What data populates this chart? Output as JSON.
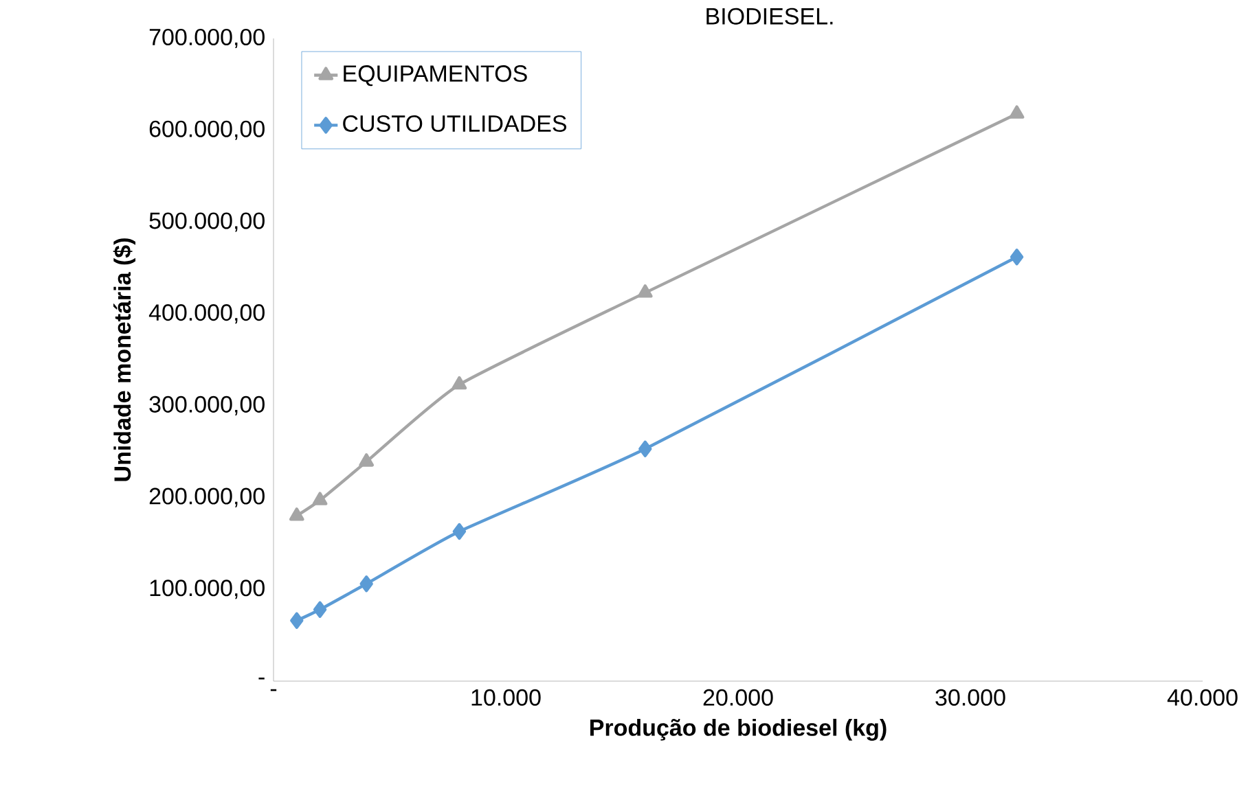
{
  "chart_data": {
    "type": "line",
    "title": "BIODIESEL.",
    "xlabel": "Produção de biodiesel (kg)",
    "ylabel": "Unidade monetária ($)",
    "x": [
      1000,
      2000,
      4000,
      8000,
      16000,
      32000
    ],
    "series": [
      {
        "name": "EQUIPAMENTOS",
        "color": "#a5a5a5",
        "marker": "triangle",
        "values": [
          180000,
          197000,
          239000,
          323000,
          423000,
          618000
        ]
      },
      {
        "name": "CUSTO UTILIDADES",
        "color": "#5b9bd5",
        "marker": "diamond",
        "values": [
          66000,
          78000,
          106000,
          163000,
          253000,
          462000
        ]
      }
    ],
    "xlim": [
      0,
      40000
    ],
    "xticks": [
      {
        "value": 0,
        "label": "-"
      },
      {
        "value": 10000,
        "label": "10.000"
      },
      {
        "value": 20000,
        "label": "20.000"
      },
      {
        "value": 30000,
        "label": "30.000"
      },
      {
        "value": 40000,
        "label": "40.000"
      }
    ],
    "ylim": [
      0,
      700000
    ],
    "yticks": [
      {
        "value": 0,
        "label": "-"
      },
      {
        "value": 100000,
        "label": "100.000,00"
      },
      {
        "value": 200000,
        "label": "200.000,00"
      },
      {
        "value": 300000,
        "label": "300.000,00"
      },
      {
        "value": 400000,
        "label": "400.000,00"
      },
      {
        "value": 500000,
        "label": "500.000,00"
      },
      {
        "value": 600000,
        "label": "600.000,00"
      },
      {
        "value": 700000,
        "label": "700.000,00"
      }
    ],
    "grid": false,
    "legend": "top left",
    "line_style": "solid"
  }
}
